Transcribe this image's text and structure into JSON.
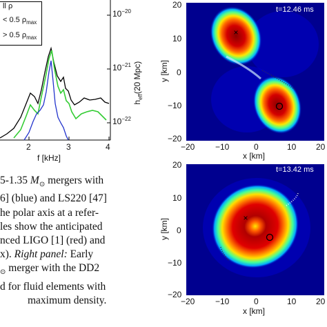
{
  "left_plot": {
    "legend": {
      "line1": "ll ρ",
      "line2_pre": "< 0.5 ρ",
      "line2_sub": "max",
      "line3_pre": "> 0.5 ρ",
      "line3_sub": "max"
    },
    "right_axis_label": "h",
    "right_axis_label_sub": "eff",
    "right_axis_label_paren": "(20 Mpc)",
    "y_ticks": [
      "10",
      "10",
      "10"
    ],
    "y_exps": [
      "−20",
      "−21",
      "−22"
    ],
    "x_ticks": [
      "2",
      "3",
      "4"
    ],
    "x_label": "f [kHz]",
    "colors": {
      "black": "#000000",
      "green": "#33cc33",
      "blue": "#2233cc"
    }
  },
  "top_map": {
    "time_label": "t=12.46 ms",
    "y_ticks": [
      "20",
      "10",
      "0",
      "−10",
      "−20"
    ],
    "x_ticks": [
      "−20",
      "−10",
      "0",
      "10",
      "20"
    ],
    "x_label": "x [km]",
    "y_label": "y [km]"
  },
  "bottom_map": {
    "time_label": "t=13.42 ms",
    "y_ticks": [
      "20",
      "10",
      "0",
      "−10",
      "−20"
    ],
    "x_ticks": [
      "−20",
      "−10",
      "0",
      "10",
      "20"
    ],
    "x_label": "x [km]",
    "y_label": "y [km]"
  },
  "caption": {
    "line1_pre": "5-1.35 ",
    "line1_m": "M",
    "line1_sub": "⊙",
    "line1_post": " mergers with",
    "line2": "6] (blue) and LS220 [47]",
    "line3": "he polar axis at a refer-",
    "line4": "les show the anticipated",
    "line5": "nced LIGO [1] (red) and",
    "line6_pre": "x). ",
    "line6_it": "Right panel:",
    "line6_post": " Early",
    "line7_pre": "⊙",
    "line7_post": " merger with the DD2",
    "line8": "d for fluid elements with",
    "line9": "maximum density."
  }
}
